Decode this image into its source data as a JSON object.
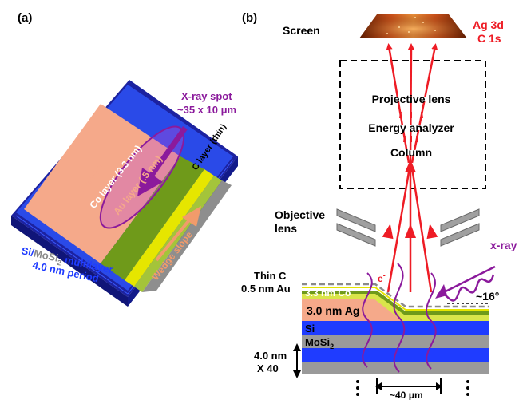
{
  "panel_a": {
    "label": "(a)",
    "xray_spot_line1": "X-ray spot",
    "xray_spot_line2": "~35 x 10 μm",
    "c_layer": "C layer (thin)",
    "ag_wedge": "Ag wedge",
    "co_layer": "Co layer (3.3 nm)",
    "au_layer": "Au layer (.5 nm)",
    "wedge_slope": "Wedge slope",
    "multilayer_si": "Si/",
    "multilayer_mosi": "MoSi",
    "multilayer_sub": "2",
    "multilayer_word": " multilayer",
    "period": "4.0 nm period"
  },
  "panel_b": {
    "label": "(b)",
    "screen": "Screen",
    "ag3d": "Ag 3d",
    "c1s": "C 1s",
    "projective_lens": "Projective lens",
    "energy_analyzer": "Energy analyzer",
    "column": "Column",
    "objective_line1": "Objective",
    "objective_line2": "lens",
    "xray": "x-ray",
    "electron": "e",
    "electron_sup": "-",
    "angle": "~16°",
    "thin_c": "Thin C",
    "au": "0.5 nm Au",
    "co": "3.3 nm Co",
    "ag": "3.0 nm Ag",
    "si": "Si",
    "mosi": "MoSi",
    "mosi_sub": "2",
    "period_line1": "4.0 nm",
    "period_line2": "X 40",
    "width": "~40 μm"
  },
  "colors": {
    "navy": "#1c22a0",
    "blue": "#1f3cff",
    "gray": "#9a9a9a",
    "ag_pink": "#f5a98a",
    "co_green": "#6f9a1a",
    "au_yellow": "#e6e600",
    "red": "#ee1c25",
    "purple": "#8b1a9c",
    "orange": "#f29b6b"
  }
}
